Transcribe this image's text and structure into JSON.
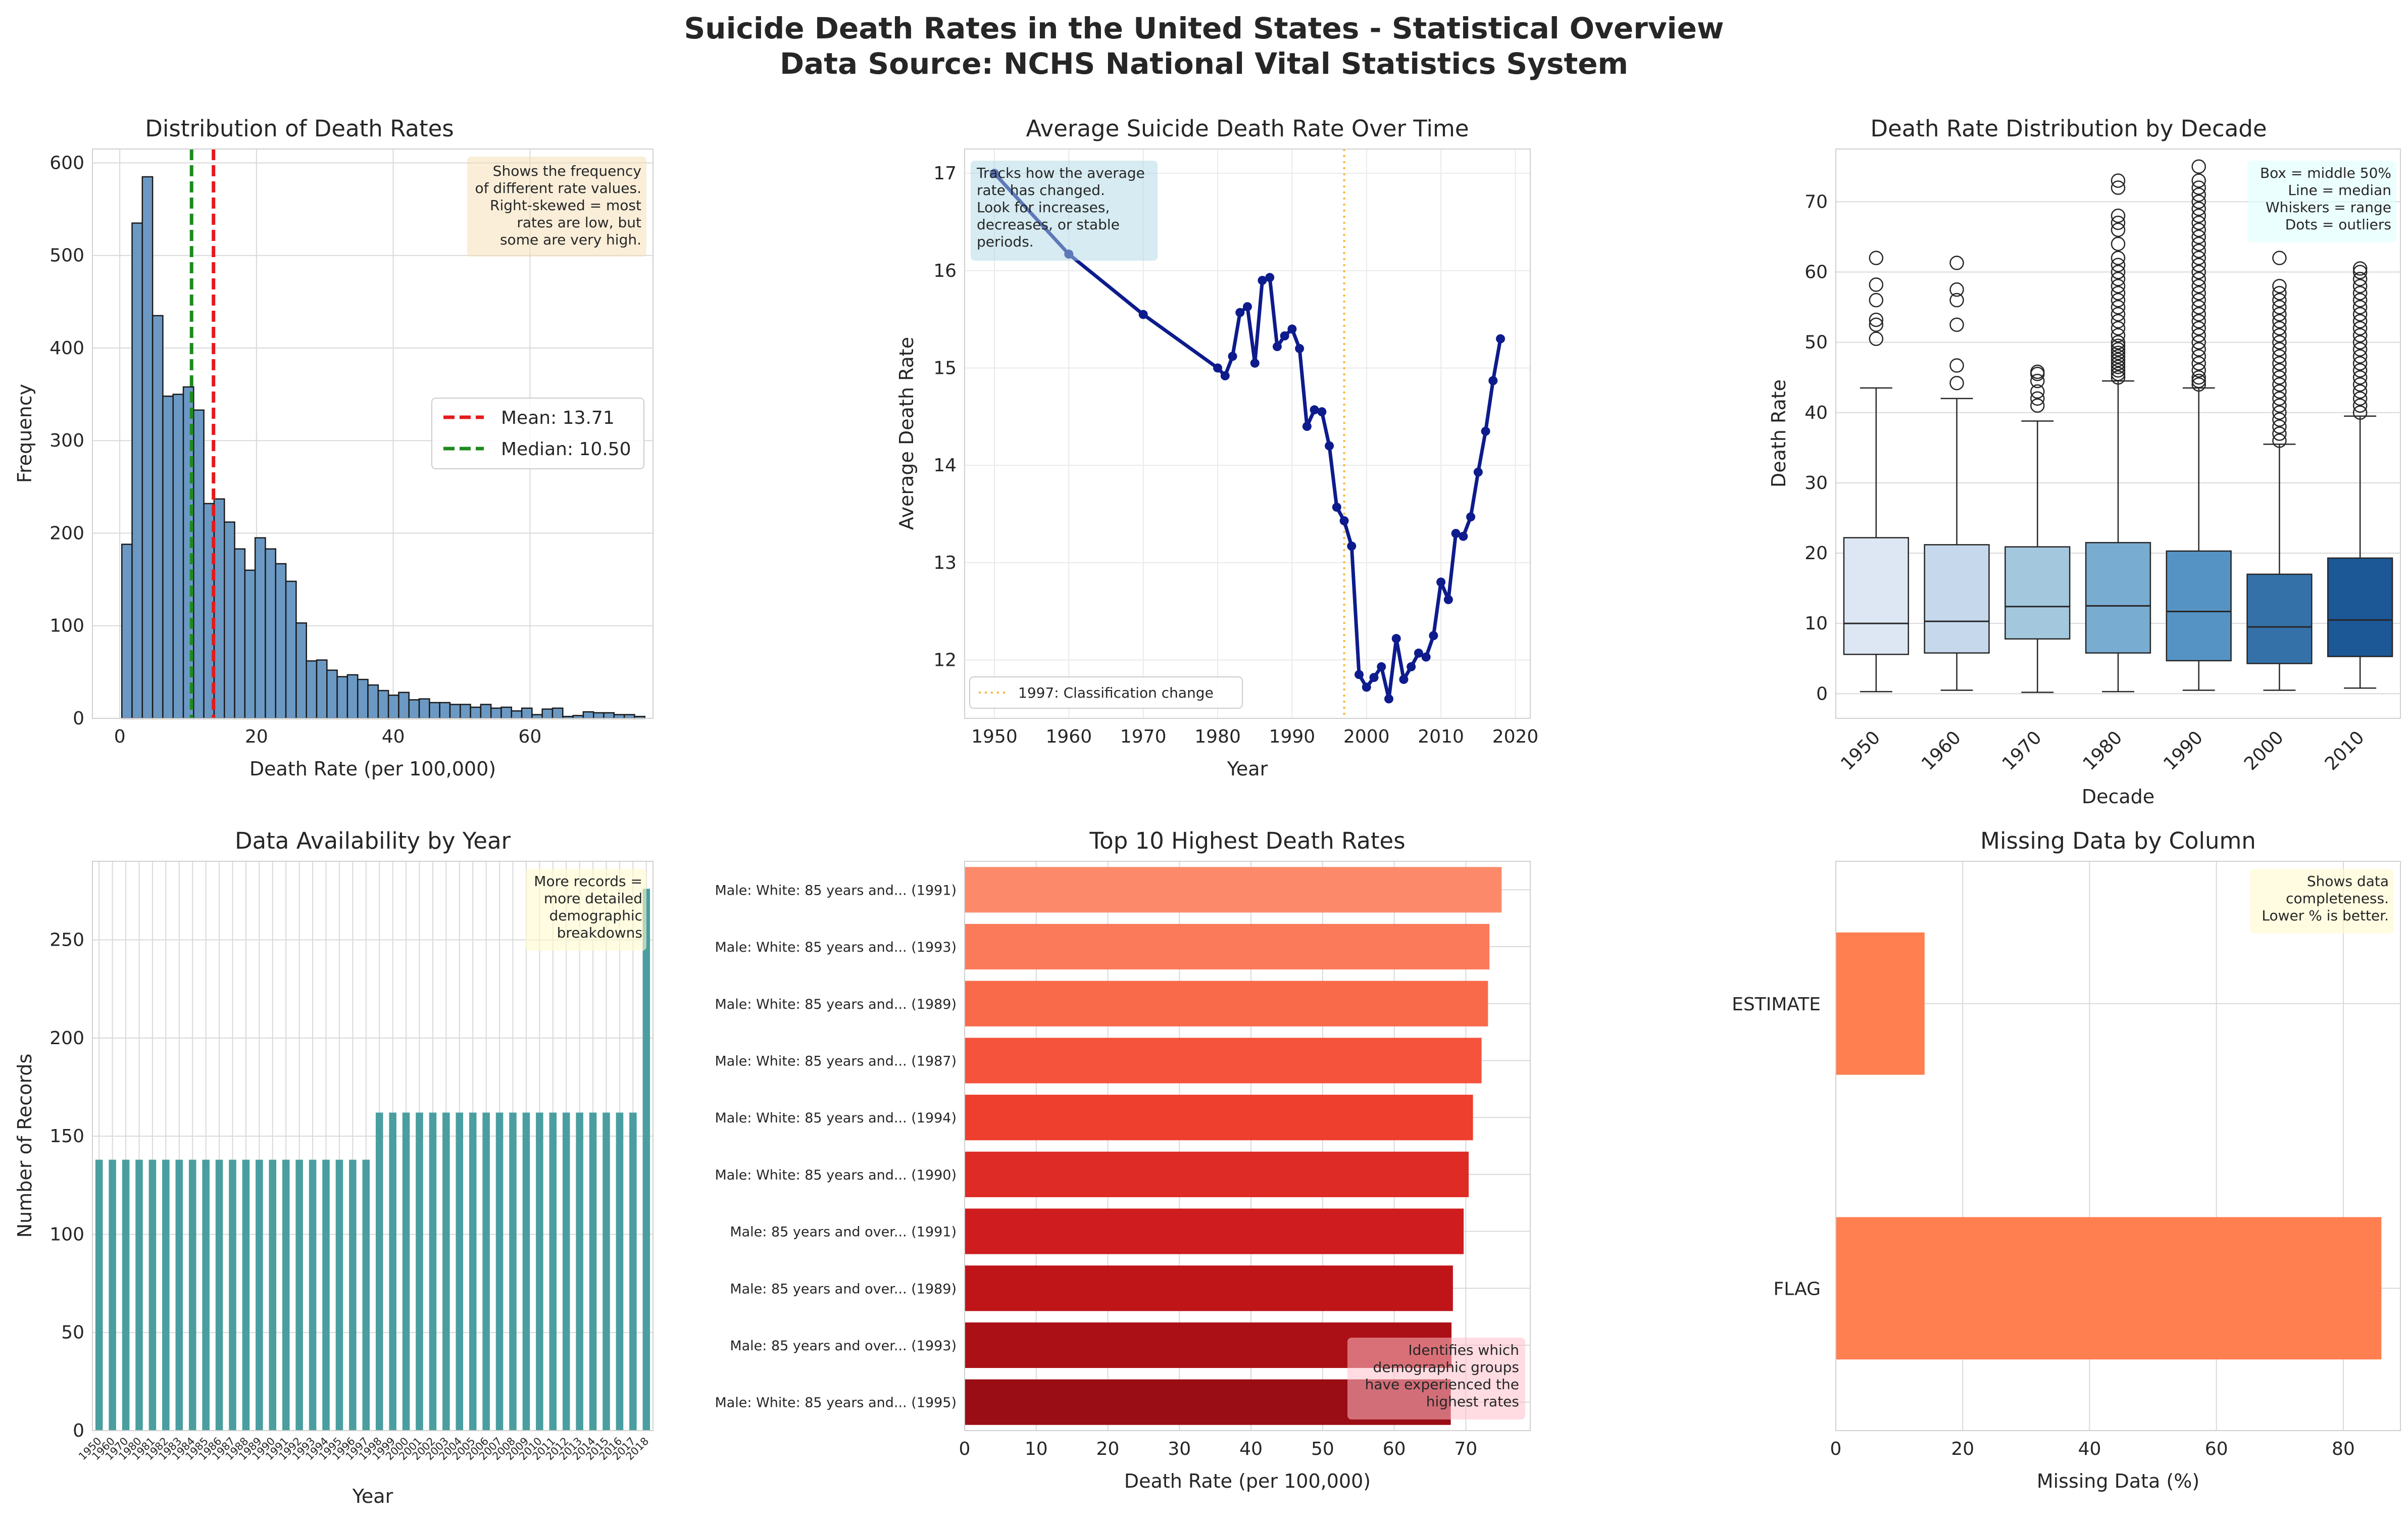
{
  "figure": {
    "title_line1": "Suicide Death Rates in the United States - Statistical Overview",
    "title_line2": "Data Source: NCHS National Vital Statistics System"
  },
  "colors": {
    "hist_bar": "#6b99c4",
    "mean_line": "#e31a1c",
    "median_line": "#1f8a1f",
    "line_series": "#0d1b8c",
    "vline": "#f5b942",
    "avail_bar": "#4a9ea0",
    "missing_bar": "#ff7f50",
    "grid": "#d9d9d9"
  },
  "charts": [
    {
      "type": "bar",
      "title": "Distribution of Death Rates",
      "xlabel": "Death Rate (per 100,000)",
      "ylabel": "Frequency",
      "xlim": [
        -4,
        78
      ],
      "ylim": [
        0,
        615
      ],
      "xticks": [
        0,
        20,
        40,
        60
      ],
      "yticks": [
        0,
        100,
        200,
        300,
        400,
        500,
        600
      ],
      "bin_start": 0.3,
      "bin_width": 1.5,
      "counts": [
        188,
        535,
        585,
        435,
        348,
        350,
        358,
        333,
        232,
        237,
        212,
        183,
        160,
        195,
        183,
        167,
        148,
        103,
        62,
        63,
        52,
        45,
        47,
        42,
        36,
        30,
        25,
        28,
        20,
        21,
        17,
        17,
        15,
        15,
        12,
        15,
        11,
        12,
        8,
        11,
        4,
        10,
        11,
        2,
        3,
        7,
        6,
        6,
        4,
        4,
        2
      ],
      "vlines": [
        {
          "label": "Mean: 13.71",
          "value": 13.71
        },
        {
          "label": "Median: 10.50",
          "value": 10.5
        }
      ],
      "annotation": [
        "Shows the frequency",
        "of different rate values.",
        "Right-skewed = most",
        "rates are low, but",
        "some are very high."
      ]
    },
    {
      "type": "line",
      "title": "Average Suicide Death Rate Over Time",
      "xlabel": "Year",
      "ylabel": "Average Death Rate",
      "xlim": [
        1946,
        2022
      ],
      "ylim": [
        11.4,
        17.25
      ],
      "xticks": [
        1950,
        1960,
        1970,
        1980,
        1990,
        2000,
        2010,
        2020
      ],
      "yticks": [
        12,
        13,
        14,
        15,
        16,
        17
      ],
      "x": [
        1950,
        1960,
        1970,
        1980,
        1981,
        1982,
        1983,
        1984,
        1985,
        1986,
        1987,
        1988,
        1989,
        1990,
        1991,
        1992,
        1993,
        1994,
        1995,
        1996,
        1997,
        1998,
        1999,
        2000,
        2001,
        2002,
        2003,
        2004,
        2005,
        2006,
        2007,
        2008,
        2009,
        2010,
        2011,
        2012,
        2013,
        2014,
        2015,
        2016,
        2017,
        2018
      ],
      "y": [
        17.0,
        16.17,
        15.55,
        15.0,
        14.92,
        15.12,
        15.57,
        15.63,
        15.05,
        15.9,
        15.93,
        15.22,
        15.33,
        15.4,
        15.2,
        14.4,
        14.57,
        14.55,
        14.2,
        13.57,
        13.43,
        13.17,
        11.85,
        11.72,
        11.82,
        11.93,
        11.6,
        12.22,
        11.8,
        11.93,
        12.07,
        12.03,
        12.25,
        12.8,
        12.62,
        13.3,
        13.27,
        13.47,
        13.93,
        14.35,
        14.87,
        15.3
      ],
      "vline": {
        "label": "1997: Classification change",
        "value": 1997
      },
      "annotation": [
        "Tracks how the average",
        "rate has changed.",
        "Look for increases,",
        "decreases, or stable",
        "periods."
      ]
    },
    {
      "type": "box",
      "title": "Death Rate Distribution by Decade",
      "xlabel": "Decade",
      "ylabel": "Death Rate",
      "ylim": [
        -3.5,
        77.5
      ],
      "yticks": [
        0,
        10,
        20,
        30,
        40,
        50,
        60,
        70
      ],
      "categories": [
        "1950",
        "1960",
        "1970",
        "1980",
        "1990",
        "2000",
        "2010"
      ],
      "boxes": [
        {
          "q1": 5.6,
          "median": 10.0,
          "q3": 22.2,
          "low": 0.3,
          "high": 43.5,
          "color": "#dce7f3",
          "outliers": [
            50.5,
            52.5,
            53.2,
            56.0,
            58.2,
            62.0
          ]
        },
        {
          "q1": 5.8,
          "median": 10.3,
          "q3": 21.2,
          "low": 0.5,
          "high": 42.0,
          "color": "#c6d8ec",
          "outliers": [
            44.2,
            46.7,
            52.5,
            56.0,
            57.5,
            61.3
          ]
        },
        {
          "q1": 7.8,
          "median": 12.4,
          "q3": 20.9,
          "low": 0.2,
          "high": 38.8,
          "color": "#a3c8de",
          "outliers": [
            41.0,
            42.0,
            43.0,
            44.5,
            45.5,
            45.8
          ]
        },
        {
          "q1": 5.8,
          "median": 12.5,
          "q3": 21.5,
          "low": 0.3,
          "high": 44.5,
          "color": "#79acd1",
          "outliers": [
            45.0,
            45.5,
            46.0,
            46.5,
            47.0,
            47.5,
            48.0,
            48.5,
            49.0,
            49.5,
            50.0,
            51.0,
            52.0,
            53.0,
            54.0,
            55.0,
            56.0,
            57.0,
            58.0,
            59.0,
            60.0,
            61.0,
            62.0,
            64.0,
            66.0,
            67.0,
            68.0,
            72.0,
            73.0
          ]
        },
        {
          "q1": 4.7,
          "median": 11.7,
          "q3": 20.3,
          "low": 0.5,
          "high": 43.5,
          "color": "#5593c4",
          "outliers": [
            44.0,
            44.5,
            45.0,
            46.0,
            47.0,
            48.0,
            49.0,
            50.0,
            51.0,
            52.0,
            53.0,
            54.0,
            55.0,
            56.0,
            57.0,
            58.0,
            59.0,
            60.0,
            61.0,
            62.0,
            63.0,
            64.0,
            65.0,
            66.0,
            67.0,
            68.0,
            69.0,
            70.0,
            71.0,
            72.0,
            73.0,
            75.0
          ]
        },
        {
          "q1": 4.3,
          "median": 9.5,
          "q3": 17.0,
          "low": 0.5,
          "high": 35.5,
          "color": "#3471a8",
          "outliers": [
            36.0,
            37.0,
            38.0,
            39.0,
            40.0,
            41.0,
            42.0,
            43.0,
            44.0,
            45.0,
            46.0,
            47.0,
            48.0,
            49.0,
            50.0,
            51.0,
            52.0,
            53.0,
            54.0,
            55.0,
            56.0,
            57.0,
            58.0,
            62.0
          ]
        },
        {
          "q1": 5.3,
          "median": 10.5,
          "q3": 19.3,
          "low": 0.8,
          "high": 39.5,
          "color": "#1c5796",
          "outliers": [
            40.0,
            41.0,
            42.0,
            43.0,
            44.0,
            45.0,
            46.0,
            47.0,
            48.0,
            49.0,
            50.0,
            51.0,
            52.0,
            53.0,
            54.0,
            55.0,
            56.0,
            57.0,
            58.0,
            59.0,
            60.0,
            60.5
          ]
        }
      ],
      "annotation": [
        "Box = middle 50%",
        "Line = median",
        "Whiskers = range",
        "Dots = outliers"
      ]
    },
    {
      "type": "bar",
      "title": "Data Availability by Year",
      "xlabel": "Year",
      "ylabel": "Number of Records",
      "ylim": [
        0,
        290
      ],
      "yticks": [
        0,
        50,
        100,
        150,
        200,
        250
      ],
      "categories": [
        "1950",
        "1960",
        "1970",
        "1980",
        "1981",
        "1982",
        "1983",
        "1984",
        "1985",
        "1986",
        "1987",
        "1988",
        "1989",
        "1990",
        "1991",
        "1992",
        "1993",
        "1994",
        "1995",
        "1996",
        "1997",
        "1998",
        "1999",
        "2000",
        "2001",
        "2002",
        "2003",
        "2004",
        "2005",
        "2006",
        "2007",
        "2008",
        "2009",
        "2010",
        "2011",
        "2012",
        "2013",
        "2014",
        "2015",
        "2016",
        "2017",
        "2018"
      ],
      "tick_labels": [
        "1950",
        "1960",
        "1970",
        "1980",
        "1981",
        "1982",
        "1983",
        "1984",
        "1985",
        "1986",
        "1987",
        "1988",
        "1989",
        "1990",
        "1991",
        "1992",
        "1993",
        "1994",
        "1995",
        "1996",
        "1997",
        "1998",
        "1999",
        "2000",
        "2001",
        "2002",
        "2003",
        "2004",
        "2005",
        "2006",
        "2007",
        "2008",
        "2009",
        "2010",
        "2011",
        "2012",
        "2013",
        "2014",
        "2015",
        "2016",
        "2017",
        "2018"
      ],
      "values": [
        138,
        138,
        138,
        138,
        138,
        138,
        138,
        138,
        138,
        138,
        138,
        138,
        138,
        138,
        138,
        138,
        138,
        138,
        138,
        138,
        138,
        162,
        162,
        162,
        162,
        162,
        162,
        162,
        162,
        162,
        162,
        162,
        162,
        162,
        162,
        162,
        162,
        162,
        162,
        162,
        162,
        276
      ],
      "annotation": [
        "More records =",
        "more detailed",
        "demographic",
        "breakdowns"
      ]
    },
    {
      "type": "bar",
      "orientation": "horizontal",
      "title": "Top 10 Highest Death Rates",
      "xlabel": "Death Rate (per 100,000)",
      "xlim": [
        0,
        79
      ],
      "xticks": [
        0,
        10,
        20,
        30,
        40,
        50,
        60,
        70
      ],
      "categories": [
        "Male: White: 85 years and... (1991)",
        "Male: White: 85 years and... (1993)",
        "Male: White: 85 years and... (1989)",
        "Male: White: 85 years and... (1987)",
        "Male: White: 85 years and... (1994)",
        "Male: White: 85 years and... (1990)",
        "Male: 85 years and over... (1991)",
        "Male: 85 years and over... (1989)",
        "Male: 85 years and over... (1993)",
        "Male: White: 85 years and... (1995)"
      ],
      "values": [
        75.0,
        73.3,
        73.1,
        72.2,
        71.0,
        70.4,
        69.7,
        68.2,
        68.0,
        67.9
      ],
      "colors": [
        "#fc8a6a",
        "#fb7a5a",
        "#f96a4b",
        "#f5533c",
        "#ee3e2e",
        "#de2b25",
        "#cf1c1f",
        "#bf1519",
        "#ab1016",
        "#9a0d14"
      ],
      "annotation": [
        "Identifies which",
        "demographic groups",
        "have experienced the",
        "highest rates"
      ]
    },
    {
      "type": "bar",
      "orientation": "horizontal",
      "title": "Missing Data by Column",
      "xlabel": "Missing Data (%)",
      "xlim": [
        0,
        89
      ],
      "xticks": [
        0,
        20,
        40,
        60,
        80
      ],
      "categories": [
        "ESTIMATE",
        "FLAG"
      ],
      "values": [
        14.0,
        86.0
      ],
      "annotation": [
        "Shows data",
        "completeness.",
        "Lower % is better."
      ]
    }
  ]
}
